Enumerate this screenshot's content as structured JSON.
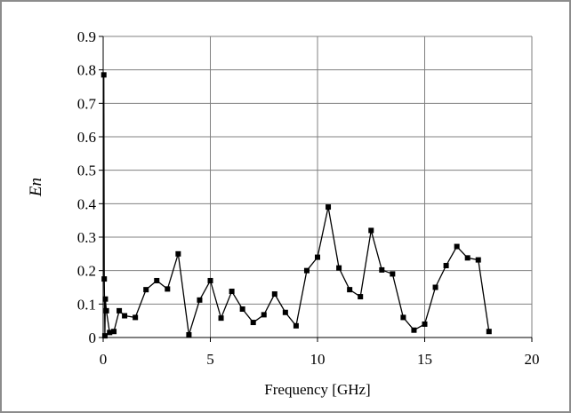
{
  "chart_data": {
    "type": "line",
    "title": "",
    "xlabel": "Frequency [GHz]",
    "ylabel": "En",
    "xlim": [
      0,
      20
    ],
    "ylim": [
      0,
      0.9
    ],
    "xticks": [
      "0",
      "5",
      "10",
      "15",
      "20"
    ],
    "yticks": [
      "0",
      "0.1",
      "0.2",
      "0.3",
      "0.4",
      "0.5",
      "0.6",
      "0.7",
      "0.8",
      "0.9"
    ],
    "xtick_values": [
      0,
      5,
      10,
      15,
      20
    ],
    "ytick_values": [
      0,
      0.1,
      0.2,
      0.3,
      0.4,
      0.5,
      0.6,
      0.7,
      0.8,
      0.9
    ],
    "grid": true,
    "legend": "none",
    "series_color": "#000000",
    "series": [
      {
        "x": [
          0.03,
          0.05,
          0.08,
          0.1,
          0.15,
          0.3,
          0.5,
          0.75,
          1.0,
          1.5,
          2.0,
          2.5,
          3.0,
          3.5,
          4.0,
          4.5,
          5.0,
          5.5,
          6.0,
          6.5,
          7.0,
          7.5,
          8.0,
          8.5,
          9.0,
          9.5,
          10.0,
          10.5,
          11.0,
          11.5,
          12.0,
          12.5,
          13.0,
          13.5,
          14.0,
          14.5,
          15.0,
          15.5,
          16.0,
          16.5,
          17.0,
          17.5,
          18.0
        ],
        "y": [
          0.785,
          0.175,
          0.005,
          0.115,
          0.08,
          0.015,
          0.018,
          0.08,
          0.065,
          0.06,
          0.143,
          0.17,
          0.145,
          0.25,
          0.008,
          0.112,
          0.17,
          0.058,
          0.138,
          0.085,
          0.045,
          0.068,
          0.13,
          0.075,
          0.035,
          0.2,
          0.24,
          0.39,
          0.208,
          0.143,
          0.122,
          0.32,
          0.202,
          0.19,
          0.06,
          0.022,
          0.04,
          0.15,
          0.215,
          0.272,
          0.238,
          0.232,
          0.018
        ]
      }
    ]
  }
}
